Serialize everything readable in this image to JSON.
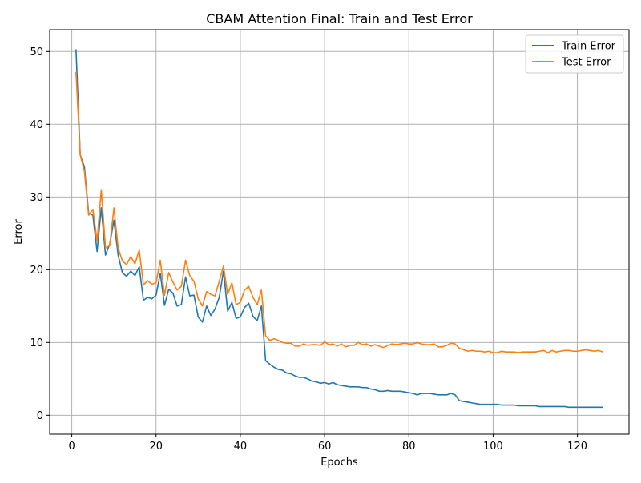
{
  "chart_data": {
    "type": "line",
    "title": "CBAM Attention Final: Train and Test Error",
    "xlabel": "Epochs",
    "ylabel": "Error",
    "xlim": [
      -5.25,
      132.25
    ],
    "ylim": [
      -2.6,
      53
    ],
    "xticks": [
      0,
      20,
      40,
      60,
      80,
      100,
      120
    ],
    "yticks": [
      0,
      10,
      20,
      30,
      40,
      50
    ],
    "grid": true,
    "legend_position": "top-right",
    "x": [
      1,
      2,
      3,
      4,
      5,
      6,
      7,
      8,
      9,
      10,
      11,
      12,
      13,
      14,
      15,
      16,
      17,
      18,
      19,
      20,
      21,
      22,
      23,
      24,
      25,
      26,
      27,
      28,
      29,
      30,
      31,
      32,
      33,
      34,
      35,
      36,
      37,
      38,
      39,
      40,
      41,
      42,
      43,
      44,
      45,
      46,
      47,
      48,
      49,
      50,
      51,
      52,
      53,
      54,
      55,
      56,
      57,
      58,
      59,
      60,
      61,
      62,
      63,
      64,
      65,
      66,
      67,
      68,
      69,
      70,
      71,
      72,
      73,
      74,
      75,
      76,
      77,
      78,
      79,
      80,
      81,
      82,
      83,
      84,
      85,
      86,
      87,
      88,
      89,
      90,
      91,
      92,
      93,
      94,
      95,
      96,
      97,
      98,
      99,
      100,
      101,
      102,
      103,
      104,
      105,
      106,
      107,
      108,
      109,
      110,
      111,
      112,
      113,
      114,
      115,
      116,
      117,
      118,
      119,
      120,
      121,
      122,
      123,
      124,
      125,
      126
    ],
    "series": [
      {
        "name": "Train Error",
        "color": "#1f77b4",
        "values": [
          50.3,
          35.8,
          34.1,
          27.8,
          27.5,
          22.5,
          28.5,
          22.0,
          23.5,
          26.8,
          22.0,
          19.6,
          19.1,
          19.8,
          19.2,
          20.4,
          15.8,
          16.2,
          16.0,
          16.5,
          19.5,
          15.1,
          17.3,
          16.8,
          15.0,
          15.2,
          19.0,
          16.4,
          16.5,
          13.5,
          12.8,
          15.0,
          13.7,
          14.6,
          16.2,
          19.8,
          14.3,
          15.5,
          13.3,
          13.5,
          14.8,
          15.4,
          13.6,
          13.0,
          15.0,
          7.5,
          7.0,
          6.6,
          6.3,
          6.2,
          5.8,
          5.7,
          5.4,
          5.2,
          5.2,
          5.0,
          4.7,
          4.6,
          4.4,
          4.5,
          4.3,
          4.5,
          4.2,
          4.1,
          4.0,
          3.9,
          3.9,
          3.9,
          3.8,
          3.8,
          3.6,
          3.5,
          3.3,
          3.3,
          3.4,
          3.3,
          3.3,
          3.3,
          3.2,
          3.1,
          3.0,
          2.8,
          3.0,
          3.0,
          3.0,
          2.9,
          2.8,
          2.8,
          2.8,
          3.0,
          2.8,
          2.0,
          1.9,
          1.8,
          1.7,
          1.6,
          1.5,
          1.5,
          1.5,
          1.5,
          1.5,
          1.4,
          1.4,
          1.4,
          1.4,
          1.3,
          1.3,
          1.3,
          1.3,
          1.3,
          1.2,
          1.2,
          1.2,
          1.2,
          1.2,
          1.2,
          1.2,
          1.1,
          1.1,
          1.1,
          1.1,
          1.1,
          1.1,
          1.1,
          1.1,
          1.1
        ]
      },
      {
        "name": "Test Error",
        "color": "#ff7f0e",
        "values": [
          47.2,
          35.8,
          33.5,
          27.5,
          28.3,
          24.0,
          31.0,
          23.0,
          23.3,
          28.5,
          23.0,
          21.2,
          20.7,
          21.8,
          20.8,
          22.7,
          17.9,
          18.5,
          18.0,
          18.2,
          21.3,
          16.5,
          19.6,
          18.3,
          17.2,
          17.7,
          21.3,
          19.2,
          18.4,
          16.0,
          15.0,
          17.0,
          16.6,
          16.4,
          18.4,
          20.5,
          16.6,
          18.2,
          15.2,
          15.5,
          17.2,
          17.7,
          16.2,
          15.2,
          17.2,
          10.9,
          10.3,
          10.5,
          10.3,
          10.0,
          9.9,
          9.9,
          9.5,
          9.5,
          9.8,
          9.6,
          9.7,
          9.7,
          9.6,
          10.1,
          9.7,
          9.8,
          9.5,
          9.8,
          9.4,
          9.6,
          9.6,
          10.0,
          9.7,
          9.8,
          9.5,
          9.7,
          9.5,
          9.3,
          9.6,
          9.8,
          9.7,
          9.8,
          9.9,
          9.8,
          9.8,
          10.0,
          9.8,
          9.7,
          9.7,
          9.8,
          9.4,
          9.4,
          9.6,
          9.9,
          9.8,
          9.2,
          9.0,
          8.8,
          8.9,
          8.8,
          8.8,
          8.7,
          8.8,
          8.6,
          8.6,
          8.8,
          8.7,
          8.7,
          8.7,
          8.6,
          8.7,
          8.7,
          8.7,
          8.7,
          8.8,
          8.9,
          8.6,
          8.9,
          8.7,
          8.8,
          8.9,
          8.9,
          8.8,
          8.8,
          8.9,
          9.0,
          8.9,
          8.8,
          8.9,
          8.7
        ]
      }
    ]
  }
}
